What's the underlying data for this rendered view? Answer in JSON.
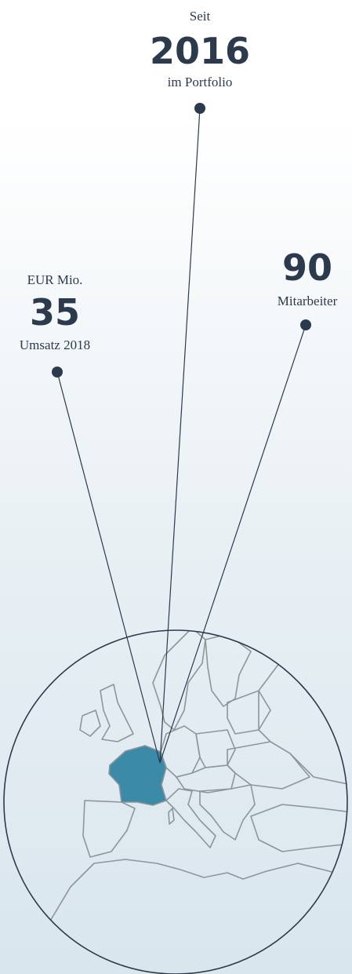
{
  "stats": [
    {
      "prefix": "Seit",
      "value": 2016,
      "suffix": "im Portfolio"
    },
    {
      "prefix": "EUR Mio.",
      "value": 35,
      "suffix": "Umsatz 2018"
    },
    {
      "value": 90,
      "suffix": "Mitarbeiter"
    }
  ]
}
